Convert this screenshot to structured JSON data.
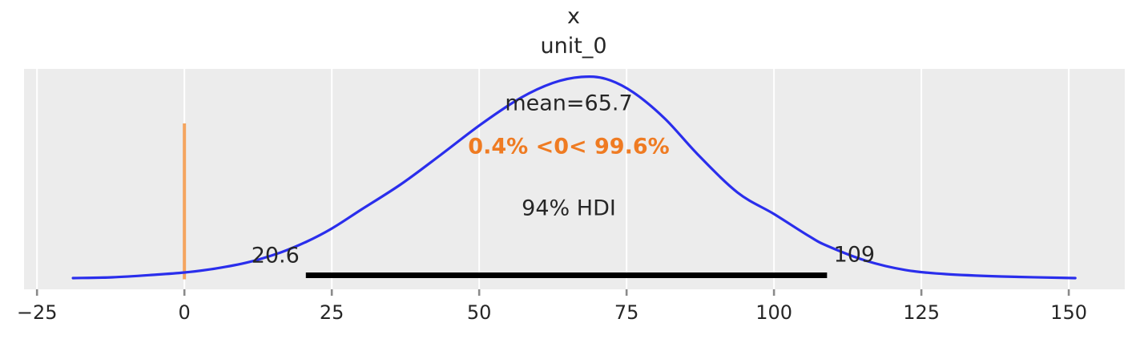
{
  "figure": {
    "title_line1": "x",
    "title_line2": "unit_0"
  },
  "annotations": {
    "mean_label": "mean=65.7",
    "ref_val_label": "0.4% <0< 99.6%",
    "hdi_label": "94% HDI",
    "hdi_lower_label": "20.6",
    "hdi_upper_label": "109"
  },
  "x_axis": {
    "tick_labels": [
      "−25",
      "0",
      "25",
      "50",
      "75",
      "100",
      "125",
      "150"
    ],
    "tick_values": [
      -25,
      0,
      25,
      50,
      75,
      100,
      125,
      150
    ]
  },
  "colors": {
    "figure_background": "#ffffff",
    "panel_background": "#ececec",
    "gridline": "#ffffff",
    "kde_curve": "#2a2eec",
    "ref_line": "#f5a55f",
    "ref_text": "#ef7b22",
    "hdi_bar": "#000000",
    "text": "#262626",
    "tick_mark": "#8a8a8a"
  },
  "chart_data": {
    "type": "line",
    "title": "x unit_0",
    "variable": "x",
    "coordinate": "unit_0",
    "mean": 65.7,
    "hdi_prob": "94%",
    "hdi_interval": [
      20.6,
      109
    ],
    "ref_val": 0,
    "percent_below_ref": "0.4%",
    "percent_above_ref": "99.6%",
    "xlim": [
      -27.2,
      159.5
    ],
    "x_ticks": [
      -25,
      0,
      25,
      50,
      75,
      100,
      125,
      150
    ],
    "grid": "on",
    "legend": "none",
    "kde": {
      "x": [
        -18.9,
        -12.2,
        -5.4,
        0,
        5.4,
        10.9,
        16.3,
        20.6,
        25,
        29.9,
        36.7,
        43.5,
        50.3,
        57.1,
        62.5,
        67.3,
        71.5,
        76.1,
        81.5,
        87,
        93.8,
        100,
        106,
        109.1,
        115.5,
        122.3,
        129.1,
        138.6,
        151.1
      ],
      "density": [
        0.002,
        0.006,
        0.018,
        0.03,
        0.05,
        0.081,
        0.129,
        0.181,
        0.248,
        0.34,
        0.467,
        0.614,
        0.765,
        0.897,
        0.97,
        1.0,
        0.99,
        0.924,
        0.793,
        0.618,
        0.427,
        0.32,
        0.209,
        0.161,
        0.089,
        0.042,
        0.022,
        0.01,
        0.002
      ]
    }
  }
}
